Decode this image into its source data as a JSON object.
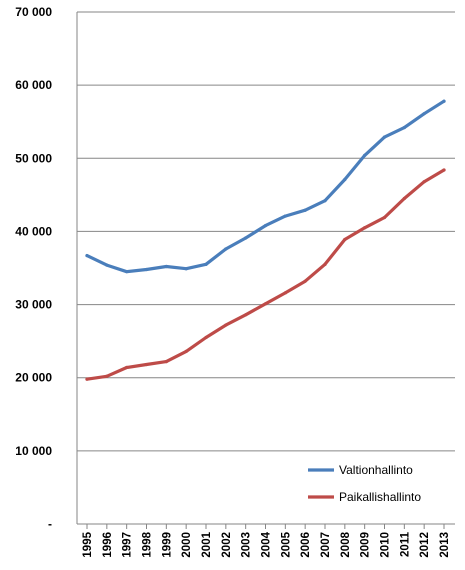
{
  "chart_data": {
    "type": "line",
    "x": [
      "1995",
      "1996",
      "1997",
      "1998",
      "1999",
      "2000",
      "2001",
      "2002",
      "2003",
      "2004",
      "2005",
      "2006",
      "2007",
      "2008",
      "2009",
      "2010",
      "2011",
      "2012",
      "2013"
    ],
    "series": [
      {
        "name": "Valtionhallinto",
        "color": "#4a7ebb",
        "values": [
          36700,
          35400,
          34500,
          34800,
          35200,
          34900,
          35500,
          37600,
          39100,
          40800,
          42100,
          42900,
          44200,
          47100,
          50400,
          52900,
          54200,
          56100,
          57800
        ]
      },
      {
        "name": "Paikallishallinto",
        "color": "#be4b48",
        "values": [
          19800,
          20200,
          21400,
          21800,
          22200,
          23600,
          25500,
          27200,
          28600,
          30100,
          31600,
          33200,
          35500,
          38900,
          40500,
          41900,
          44500,
          46800,
          48400
        ]
      }
    ],
    "ylim": [
      0,
      70000
    ],
    "yticks": [
      0,
      10000,
      20000,
      30000,
      40000,
      50000,
      60000,
      70000
    ],
    "ytick_labels": [
      "-",
      "10 000",
      "20 000",
      "30 000",
      "40 000",
      "50 000",
      "60 000",
      "70 000"
    ],
    "grid": "horizontal",
    "legend_position": "bottom-right",
    "title": "",
    "xlabel": "",
    "ylabel": ""
  }
}
